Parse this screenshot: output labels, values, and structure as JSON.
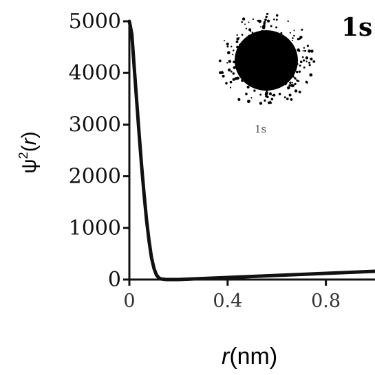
{
  "chart_data": {
    "type": "line",
    "corner_label": "1s",
    "inset_label": "1s",
    "xlabel_var": "r",
    "xlabel_unit": "(nm)",
    "ylabel_prefix": "ψ",
    "ylabel_sup": "2",
    "ylabel_suffix_open": "(",
    "ylabel_var": "r",
    "ylabel_suffix_close": ")",
    "xlim": [
      0,
      1.0
    ],
    "ylim": [
      0,
      5000
    ],
    "xticks": [
      {
        "value": 0,
        "label": "0"
      },
      {
        "value": 0.4,
        "label": "0.4"
      },
      {
        "value": 0.8,
        "label": "0.8"
      }
    ],
    "yticks": [
      {
        "value": 0,
        "label": "0"
      },
      {
        "value": 1000,
        "label": "1000"
      },
      {
        "value": 2000,
        "label": "2000"
      },
      {
        "value": 3000,
        "label": "3000"
      },
      {
        "value": 4000,
        "label": "4000"
      },
      {
        "value": 5000,
        "label": "5000"
      }
    ],
    "grid": false,
    "series": [
      {
        "color": "#111111",
        "x": [
          0,
          0.01,
          0.02,
          0.03,
          0.04,
          0.05,
          0.06,
          0.07,
          0.08,
          0.09,
          0.1,
          0.11,
          0.12,
          0.13,
          0.15,
          0.2,
          0.3,
          0.4,
          0.5,
          0.6,
          0.7,
          0.8,
          0.9,
          1.0
        ],
        "y": [
          5000,
          4750,
          4100,
          3450,
          2800,
          2200,
          1650,
          1150,
          750,
          430,
          220,
          90,
          30,
          10,
          0,
          0,
          20,
          40,
          60,
          80,
          100,
          120,
          140,
          160
        ]
      }
    ]
  }
}
